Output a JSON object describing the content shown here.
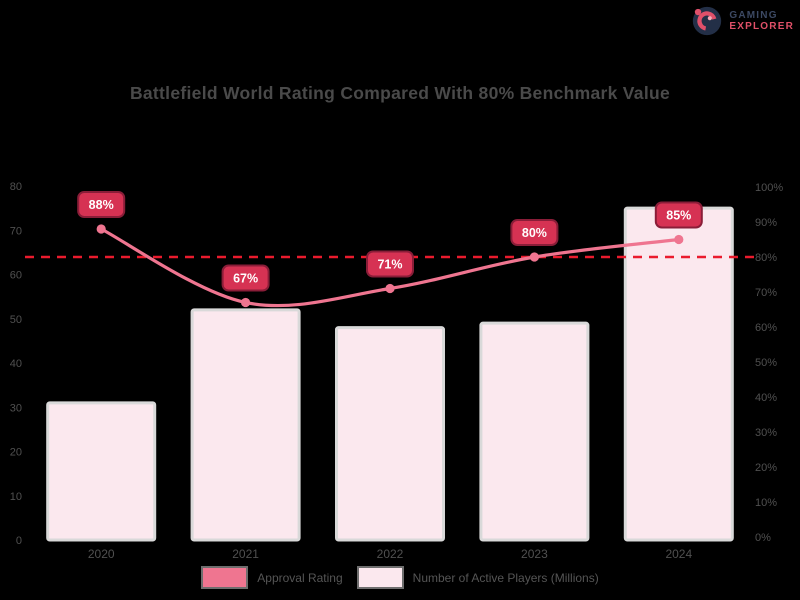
{
  "brand": {
    "line1": "GAMING",
    "line2": "EXPLORER"
  },
  "colors": {
    "background": "#000000",
    "title_text": "#4a4a4a",
    "axis_text": "#505050",
    "bar_fill": "#fbe8ee",
    "bar_border": "#d9d9d9",
    "line": "#ef7590",
    "marker": "#ef7590",
    "badge_fill": "#d63253",
    "badge_border": "#8a1d38",
    "badge_text": "#ffffff",
    "benchmark": "#ea1b2d",
    "legend_text": "#555555",
    "logo_navy": "#3c4963",
    "logo_red": "#e05068"
  },
  "chart_data": {
    "type": "bar",
    "title": "Battlefield World Rating Compared With 80% Benchmark Value",
    "categories": [
      "2020",
      "2021",
      "2022",
      "2023",
      "2024"
    ],
    "series": [
      {
        "name": "Approval Rating",
        "type": "line",
        "axis": "right",
        "values": [
          88,
          67,
          71,
          80,
          85
        ],
        "point_labels": [
          "88%",
          "67%",
          "71%",
          "80%",
          "85%"
        ]
      },
      {
        "name": "Number of Active Players (Millions)",
        "type": "bar",
        "axis": "left",
        "values": [
          31,
          52,
          48,
          49,
          75
        ]
      }
    ],
    "benchmark": {
      "axis": "right",
      "value": 80,
      "style": "dashed"
    },
    "left_axis": {
      "min": 0,
      "max": 80,
      "step": 10,
      "ticks": [
        "80",
        "70",
        "60",
        "50",
        "40",
        "30",
        "20",
        "10",
        "0"
      ]
    },
    "right_axis": {
      "min": 0,
      "max": 100,
      "step": 10,
      "ticks": [
        "100%",
        "90%",
        "80%",
        "70%",
        "60%",
        "50%",
        "40%",
        "30%",
        "20%",
        "10%",
        "0%"
      ]
    },
    "legend_position": "bottom",
    "grid": false
  }
}
